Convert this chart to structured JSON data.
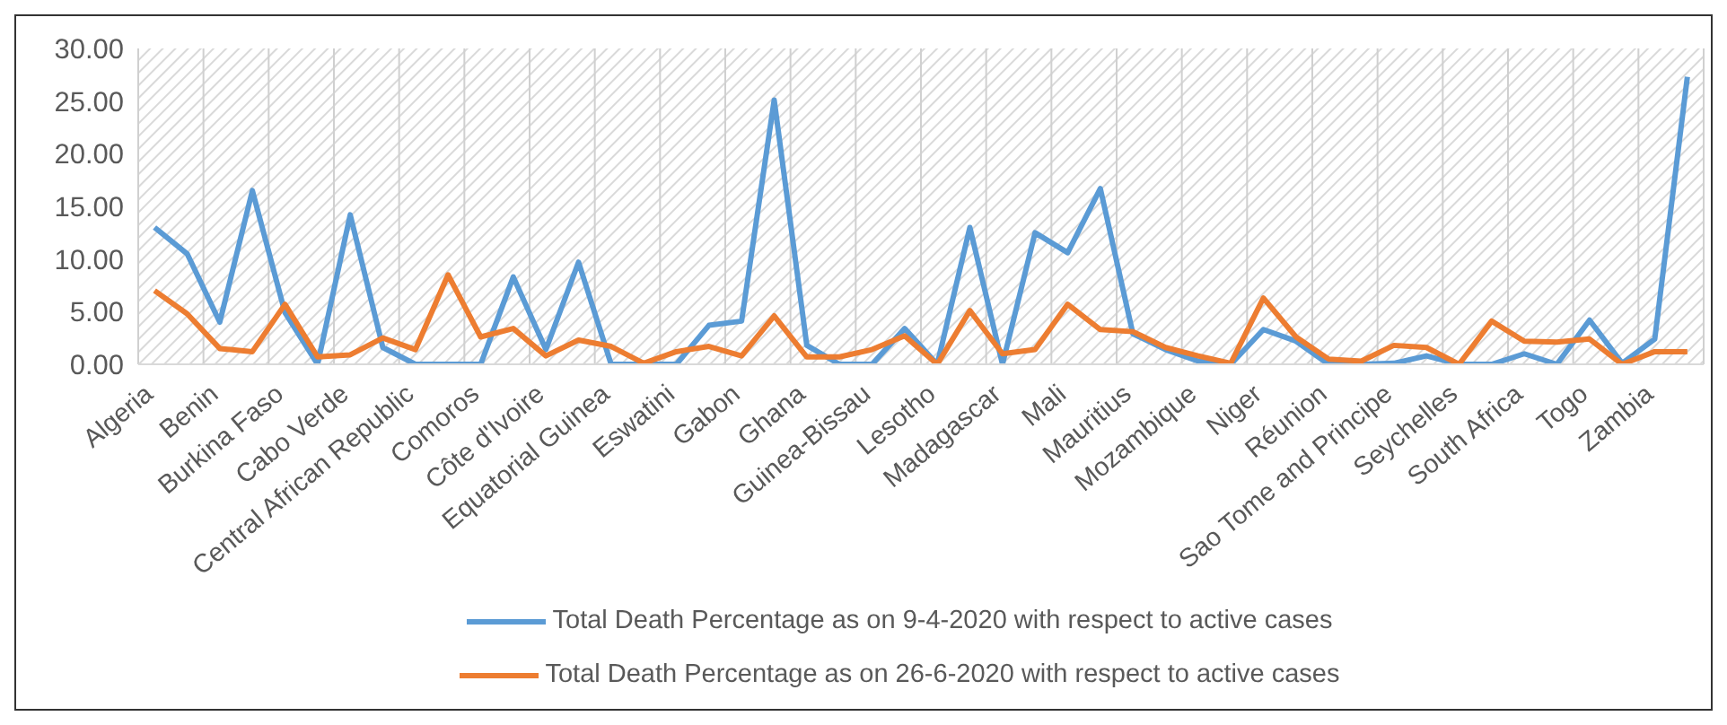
{
  "chart_data": {
    "type": "line",
    "categories": [
      "Algeria",
      null,
      "Benin",
      null,
      "Burkina Faso",
      null,
      "Cabo Verde",
      null,
      "Central African Republic",
      null,
      "Comoros",
      null,
      "Côte d'Ivoire",
      null,
      "Equatorial Guinea",
      null,
      "Eswatini",
      null,
      "Gabon",
      null,
      "Ghana",
      null,
      "Guinea-Bissau",
      null,
      "Lesotho",
      null,
      "Madagascar",
      null,
      "Mali",
      null,
      "Mauritius",
      null,
      "Mozambique",
      null,
      "Niger",
      null,
      "Réunion",
      null,
      "Sao Tome and Principe",
      null,
      "Seychelles",
      null,
      "South Africa",
      null,
      "Togo",
      null,
      "Zambia",
      null
    ],
    "series": [
      {
        "name": "Total Death Percentage as on 9-4-2020 with respect to active cases",
        "color": "#5b9bd5",
        "values": [
          13.0,
          10.5,
          4.0,
          16.5,
          4.9,
          0,
          14.2,
          1.6,
          0,
          0,
          0,
          8.3,
          1.4,
          9.7,
          0,
          0,
          0,
          3.7,
          4.1,
          25.1,
          1.8,
          0,
          0,
          3.4,
          0,
          13.0,
          0,
          12.5,
          10.6,
          16.7,
          2.9,
          1.4,
          0.3,
          0,
          3.3,
          2.2,
          0,
          0,
          0.1,
          0.8,
          0,
          0,
          1.0,
          0,
          4.2,
          0.1,
          2.4,
          27.3
        ]
      },
      {
        "name": "Total Death Percentage as on 26-6-2020 with respect to active cases",
        "color": "#ed7d31",
        "values": [
          7.0,
          4.8,
          1.5,
          1.2,
          5.7,
          0.7,
          0.9,
          2.5,
          1.4,
          8.5,
          2.6,
          3.4,
          0.8,
          2.3,
          1.7,
          0.1,
          1.2,
          1.7,
          0.8,
          4.6,
          0.7,
          0.7,
          1.4,
          2.7,
          0,
          5.1,
          1.0,
          1.4,
          5.7,
          3.3,
          3.1,
          1.6,
          0.8,
          0.1,
          6.3,
          2.6,
          0.5,
          0.3,
          1.8,
          1.6,
          0,
          4.1,
          2.2,
          2.1,
          2.4,
          0,
          1.2,
          1.2
        ]
      }
    ],
    "ylim": [
      0,
      30
    ],
    "yticks": [
      {
        "value": 0,
        "label": "0.00"
      },
      {
        "value": 5,
        "label": "5.00"
      },
      {
        "value": 10,
        "label": "10.00"
      },
      {
        "value": 15,
        "label": "15.00"
      },
      {
        "value": 20,
        "label": "20.00"
      },
      {
        "value": 25,
        "label": "25.00"
      },
      {
        "value": 30,
        "label": "30.00"
      }
    ],
    "grid": "x",
    "legend": "bottom",
    "marker": "none",
    "line_style": "solid"
  }
}
